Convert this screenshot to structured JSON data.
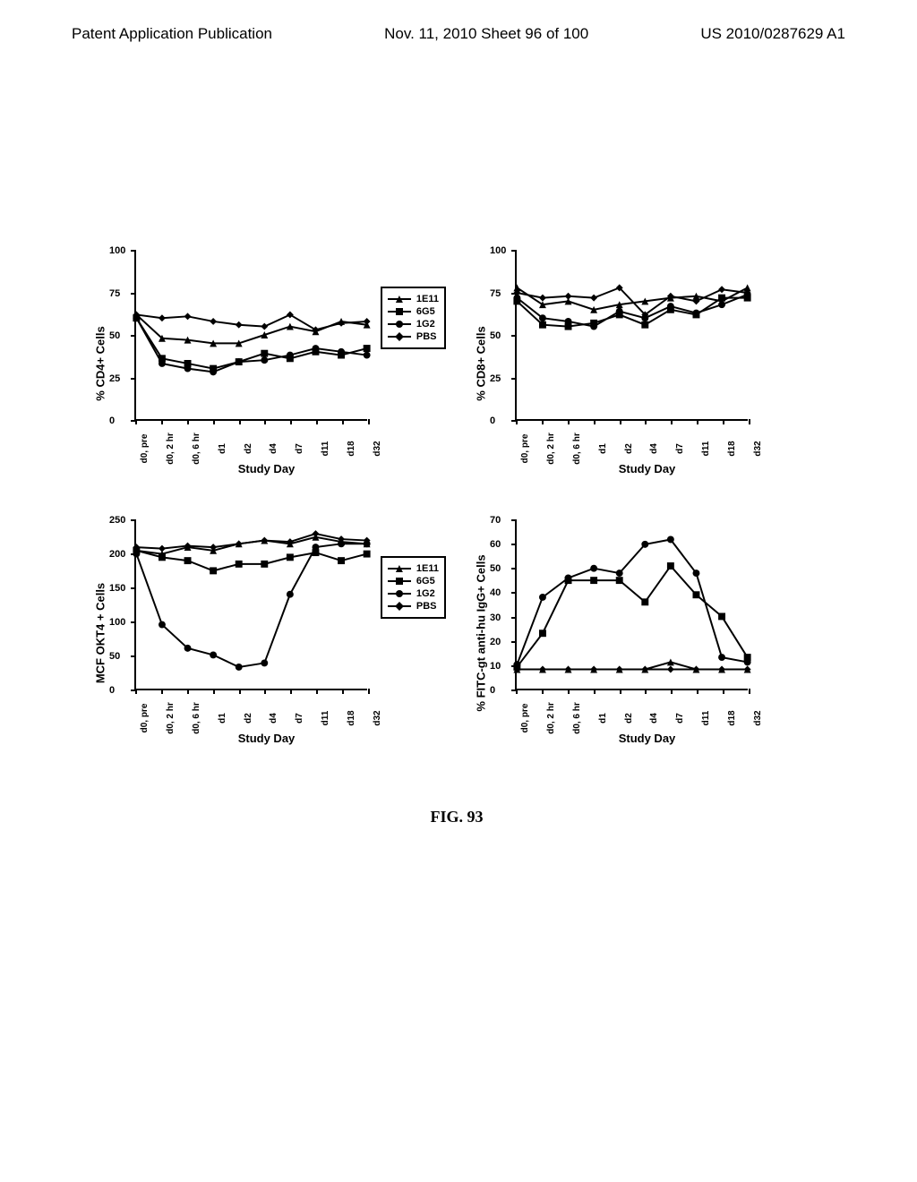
{
  "header": {
    "left": "Patent Application Publication",
    "center": "Nov. 11, 2010  Sheet 96 of 100",
    "right": "US 2010/0287629 A1"
  },
  "caption": "FIG. 93",
  "legend_items": [
    {
      "label": "1E11",
      "marker": "triangle"
    },
    {
      "label": "6G5",
      "marker": "square"
    },
    {
      "label": "1G2",
      "marker": "circle"
    },
    {
      "label": "PBS",
      "marker": "diamond"
    }
  ],
  "x_ticks": [
    "d0, pre",
    "d0, 2 hr",
    "d0, 6 hr",
    "d1",
    "d2",
    "d4",
    "d7",
    "d11",
    "d18",
    "d32"
  ],
  "charts": [
    {
      "ylabel": "% CD4+ Cells",
      "xlabel": "Study Day",
      "ylim": [
        0,
        100
      ],
      "ytick_step": 25,
      "show_legend": true,
      "series": {
        "1E11": [
          62,
          48,
          47,
          45,
          45,
          50,
          55,
          52,
          58,
          56
        ],
        "6G5": [
          60,
          36,
          33,
          30,
          34,
          39,
          36,
          40,
          38,
          42
        ],
        "1G2": [
          60,
          33,
          30,
          28,
          34,
          35,
          38,
          42,
          40,
          38
        ],
        "PBS": [
          62,
          60,
          61,
          58,
          56,
          55,
          62,
          53,
          57,
          58
        ]
      }
    },
    {
      "ylabel": "% CD8+ Cells",
      "xlabel": "Study Day",
      "ylim": [
        0,
        100
      ],
      "ytick_step": 25,
      "show_legend": false,
      "series": {
        "1E11": [
          78,
          68,
          70,
          65,
          68,
          70,
          72,
          73,
          70,
          78
        ],
        "6G5": [
          70,
          56,
          55,
          57,
          62,
          56,
          65,
          62,
          72,
          72
        ],
        "1G2": [
          72,
          60,
          58,
          55,
          64,
          60,
          67,
          63,
          68,
          74
        ],
        "PBS": [
          75,
          72,
          73,
          72,
          78,
          62,
          73,
          70,
          77,
          75
        ]
      }
    },
    {
      "ylabel": "MCF OKT4 + Cells",
      "xlabel": "Study Day",
      "ylim": [
        0,
        250
      ],
      "ytick_step": 50,
      "show_legend": true,
      "series": {
        "1E11": [
          205,
          200,
          210,
          205,
          215,
          220,
          215,
          225,
          218,
          215
        ],
        "6G5": [
          205,
          195,
          190,
          175,
          185,
          185,
          195,
          202,
          190,
          200
        ],
        "1G2": [
          200,
          95,
          60,
          50,
          32,
          38,
          140,
          210,
          215,
          215
        ],
        "PBS": [
          210,
          208,
          212,
          210,
          215,
          220,
          218,
          230,
          222,
          220
        ]
      }
    },
    {
      "ylabel": "% FITC-gt anti-hu IgG+ Cells",
      "xlabel": "Study Day",
      "ylim": [
        0,
        70
      ],
      "ytick_step": 10,
      "show_legend": false,
      "series": {
        "1E11": [
          8,
          8,
          8,
          8,
          8,
          8,
          11,
          8,
          8,
          8
        ],
        "6G5": [
          9,
          23,
          45,
          45,
          45,
          36,
          51,
          39,
          30,
          13
        ],
        "1G2": [
          10,
          38,
          46,
          50,
          48,
          60,
          62,
          48,
          13,
          11
        ],
        "PBS": [
          8,
          8,
          8,
          8,
          8,
          8,
          8,
          8,
          8,
          8
        ]
      }
    }
  ],
  "style": {
    "line_color": "#000000",
    "line_width": 2,
    "marker_size": 7,
    "background": "#ffffff"
  }
}
